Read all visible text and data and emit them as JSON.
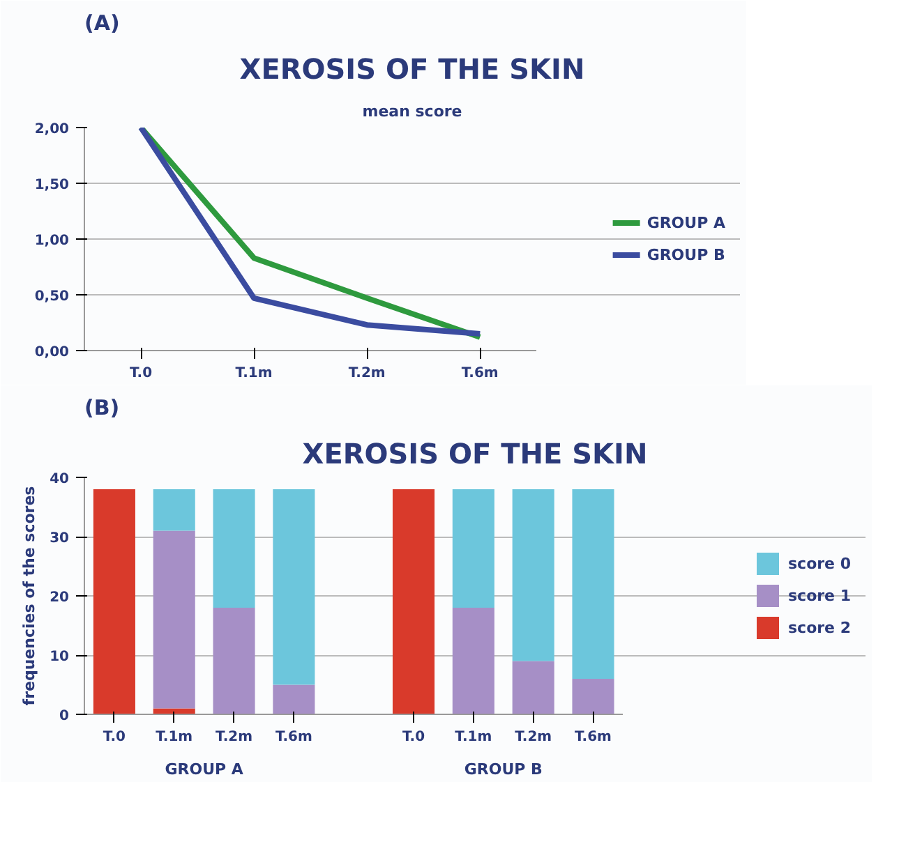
{
  "chart_data": [
    {
      "type": "line",
      "title": "XEROSIS OF THE SKIN",
      "subtitle": "mean score",
      "annotations": [
        "(A)"
      ],
      "categories": [
        "T.0",
        "T.1m",
        "T.2m",
        "T.6m"
      ],
      "series": [
        {
          "name": "GROUP A",
          "color": "#2e9a3e",
          "values": [
            2.0,
            0.83,
            0.47,
            0.12
          ]
        },
        {
          "name": "GROUP B",
          "color": "#3b4ca0",
          "values": [
            2.0,
            0.47,
            0.23,
            0.15
          ]
        }
      ],
      "ylim": [
        0,
        2
      ],
      "yticks": [
        {
          "value": 0,
          "label": "0,00"
        },
        {
          "value": 0.5,
          "label": "0,50"
        },
        {
          "value": 1,
          "label": "1,00"
        },
        {
          "value": 1.5,
          "label": "1,50"
        },
        {
          "value": 2,
          "label": "2,00"
        }
      ],
      "grid": "y",
      "legend": "right",
      "line_style": "solid"
    },
    {
      "type": "bar",
      "stacked": true,
      "title": "XEROSIS OF THE SKIN",
      "ylabel": "frequencies of the scores",
      "annotations": [
        "(B)",
        "GROUP A",
        "GROUP B"
      ],
      "categories": [
        "T.0",
        "T.1m",
        "T.2m",
        "T.6m",
        null,
        "T.0",
        "T.1m",
        "T.2m",
        "T.6m"
      ],
      "series": [
        {
          "name": "score 2",
          "color": "#d93a2b",
          "values": [
            38,
            1,
            0,
            0,
            null,
            38,
            0,
            0,
            0
          ]
        },
        {
          "name": "score 1",
          "color": "#a68fc6",
          "values": [
            0,
            30,
            18,
            5,
            null,
            0,
            18,
            9,
            6
          ]
        },
        {
          "name": "score 0",
          "color": "#6cc6dc",
          "values": [
            0,
            7,
            20,
            33,
            null,
            0,
            20,
            29,
            32
          ]
        }
      ],
      "ylim": [
        0,
        40
      ],
      "yticks": [
        0,
        10,
        20,
        30,
        40
      ],
      "grid": "y",
      "legend": "right"
    }
  ]
}
